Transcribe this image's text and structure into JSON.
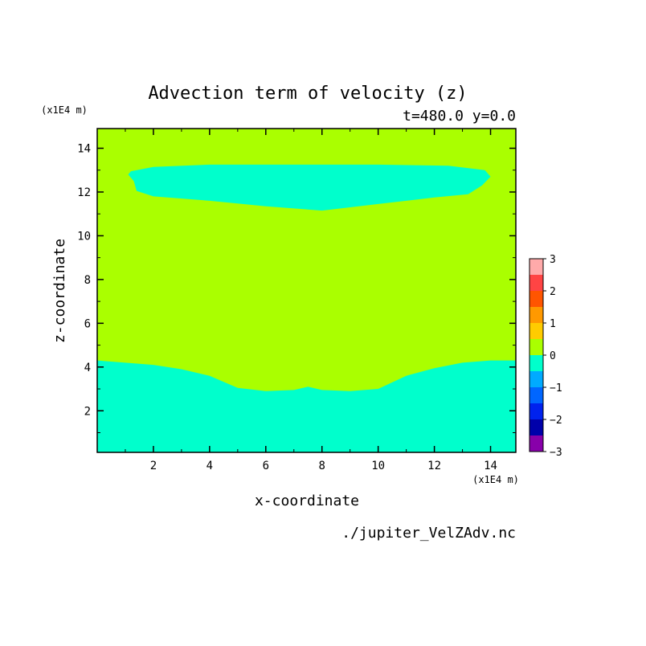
{
  "chart_data": {
    "type": "heatmap",
    "title": "Advection term of velocity (z)",
    "subtitle": "t=480.0  y=0.0",
    "xlabel": "x-coordinate",
    "ylabel": "z-coordinate",
    "x_unit": "(x1E4 m)",
    "y_unit": "(x1E4 m)",
    "footer": "./jupiter_VelZAdv.nc",
    "xlim": [
      0,
      14.9
    ],
    "ylim": [
      0.1,
      14.9
    ],
    "x_ticks": [
      "2",
      "4",
      "6",
      "8",
      "10",
      "12",
      "14"
    ],
    "x_tick_values": [
      2,
      4,
      6,
      8,
      10,
      12,
      14
    ],
    "y_ticks": [
      "2",
      "4",
      "6",
      "8",
      "10",
      "12",
      "14"
    ],
    "y_tick_values": [
      2,
      4,
      6,
      8,
      10,
      12,
      14
    ],
    "background_level": "0 to 1",
    "regions": [
      {
        "name": "upper-negative-region",
        "level": "-1 to 0",
        "color": "#00ffcc",
        "outline": [
          [
            1.2,
            12.95
          ],
          [
            2.0,
            13.15
          ],
          [
            4.0,
            13.25
          ],
          [
            7.0,
            13.25
          ],
          [
            10.0,
            13.25
          ],
          [
            12.5,
            13.2
          ],
          [
            13.8,
            13.0
          ],
          [
            14.0,
            12.7
          ],
          [
            13.7,
            12.3
          ],
          [
            13.2,
            11.9
          ],
          [
            12.0,
            11.75
          ],
          [
            10.0,
            11.45
          ],
          [
            8.0,
            11.15
          ],
          [
            6.0,
            11.35
          ],
          [
            4.0,
            11.6
          ],
          [
            2.0,
            11.8
          ],
          [
            1.4,
            12.05
          ],
          [
            1.3,
            12.5
          ],
          [
            1.1,
            12.8
          ]
        ]
      },
      {
        "name": "lower-negative-region",
        "level": "-1 to 0",
        "color": "#00ffcc",
        "outline": [
          [
            0.0,
            0.1
          ],
          [
            0.0,
            4.3
          ],
          [
            1.0,
            4.2
          ],
          [
            2.0,
            4.1
          ],
          [
            3.0,
            3.9
          ],
          [
            4.0,
            3.6
          ],
          [
            5.0,
            3.05
          ],
          [
            6.0,
            2.9
          ],
          [
            7.0,
            2.95
          ],
          [
            7.5,
            3.1
          ],
          [
            8.0,
            2.95
          ],
          [
            9.0,
            2.9
          ],
          [
            10.0,
            3.0
          ],
          [
            11.0,
            3.6
          ],
          [
            12.0,
            3.95
          ],
          [
            13.0,
            4.2
          ],
          [
            14.0,
            4.3
          ],
          [
            14.9,
            4.3
          ],
          [
            14.9,
            0.1
          ]
        ]
      }
    ],
    "colorbar": {
      "ticks": [
        "3",
        "2",
        "1",
        "0",
        "−1",
        "−2",
        "−3"
      ],
      "bands": [
        {
          "range": [
            2.5,
            3.0
          ],
          "color": "#ffaaaa"
        },
        {
          "range": [
            2.0,
            2.5
          ],
          "color": "#ff4444"
        },
        {
          "range": [
            1.5,
            2.0
          ],
          "color": "#ff5500"
        },
        {
          "range": [
            1.0,
            1.5
          ],
          "color": "#ff9900"
        },
        {
          "range": [
            0.5,
            1.0
          ],
          "color": "#ffcc00"
        },
        {
          "range": [
            0.0,
            0.5
          ],
          "color": "#aaff00"
        },
        {
          "range": [
            -0.5,
            0.0
          ],
          "color": "#00ffcc"
        },
        {
          "range": [
            -1.0,
            -0.5
          ],
          "color": "#00aaff"
        },
        {
          "range": [
            -1.5,
            -1.0
          ],
          "color": "#0066ff"
        },
        {
          "range": [
            -2.0,
            -1.5
          ],
          "color": "#0022ee"
        },
        {
          "range": [
            -2.5,
            -2.0
          ],
          "color": "#0000aa"
        },
        {
          "range": [
            -3.0,
            -2.5
          ],
          "color": "#8800aa"
        }
      ]
    },
    "background_color": "#aaff00",
    "grid": false,
    "legend": "right"
  }
}
